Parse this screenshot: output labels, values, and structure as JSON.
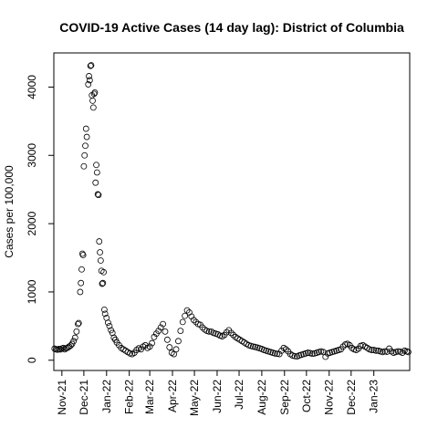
{
  "chart_data": {
    "type": "scatter",
    "title": "COVID-19 Active Cases (14 day lag): District of Columbia",
    "xlabel": "",
    "ylabel": "Cases per 100,000",
    "xlim": [
      "2021-10-21",
      "2023-02-19"
    ],
    "ylim": [
      -150,
      4500
    ],
    "yticks": [
      0,
      1000,
      2000,
      3000,
      4000
    ],
    "xticks": [
      {
        "date": "2021-11-01",
        "label": "Nov-21"
      },
      {
        "date": "2021-12-01",
        "label": "Dec-21"
      },
      {
        "date": "2022-01-01",
        "label": "Jan-22"
      },
      {
        "date": "2022-02-01",
        "label": "Feb-22"
      },
      {
        "date": "2022-03-01",
        "label": "Mar-22"
      },
      {
        "date": "2022-04-01",
        "label": "Apr-22"
      },
      {
        "date": "2022-05-01",
        "label": "May-22"
      },
      {
        "date": "2022-06-01",
        "label": "Jun-22"
      },
      {
        "date": "2022-07-01",
        "label": "Jul-22"
      },
      {
        "date": "2022-08-01",
        "label": "Aug-22"
      },
      {
        "date": "2022-09-01",
        "label": "Sep-22"
      },
      {
        "date": "2022-10-01",
        "label": "Oct-22"
      },
      {
        "date": "2022-11-01",
        "label": "Nov-22"
      },
      {
        "date": "2022-12-01",
        "label": "Dec-22"
      },
      {
        "date": "2023-01-01",
        "label": "Jan-23"
      }
    ],
    "grid": false,
    "legend": "none",
    "marker": "open-circle",
    "series": [
      {
        "points": [
          [
            "2021-10-22",
            170
          ],
          [
            "2021-10-24",
            160
          ],
          [
            "2021-10-26",
            155
          ],
          [
            "2021-10-28",
            165
          ],
          [
            "2021-10-30",
            158
          ],
          [
            "2021-11-01",
            172
          ],
          [
            "2021-11-03",
            180
          ],
          [
            "2021-11-05",
            160
          ],
          [
            "2021-11-07",
            175
          ],
          [
            "2021-11-09",
            185
          ],
          [
            "2021-11-11",
            200
          ],
          [
            "2021-11-13",
            215
          ],
          [
            "2021-11-15",
            240
          ],
          [
            "2021-11-17",
            280
          ],
          [
            "2021-11-19",
            330
          ],
          [
            "2021-11-21",
            420
          ],
          [
            "2021-11-23",
            530
          ],
          [
            "2021-11-24",
            545
          ],
          [
            "2021-11-26",
            1000
          ],
          [
            "2021-11-27",
            1130
          ],
          [
            "2021-11-28",
            1330
          ],
          [
            "2021-11-29",
            1560
          ],
          [
            "2021-11-30",
            1540
          ],
          [
            "2021-12-01",
            2840
          ],
          [
            "2021-12-02",
            3000
          ],
          [
            "2021-12-03",
            3140
          ],
          [
            "2021-12-04",
            3390
          ],
          [
            "2021-12-05",
            3270
          ],
          [
            "2021-12-07",
            4040
          ],
          [
            "2021-12-08",
            4160
          ],
          [
            "2021-12-09",
            4100
          ],
          [
            "2021-12-10",
            4310
          ],
          [
            "2021-12-11",
            4320
          ],
          [
            "2021-12-12",
            3880
          ],
          [
            "2021-12-13",
            3800
          ],
          [
            "2021-12-14",
            3700
          ],
          [
            "2021-12-15",
            3900
          ],
          [
            "2021-12-16",
            3920
          ],
          [
            "2021-12-17",
            2600
          ],
          [
            "2021-12-18",
            2860
          ],
          [
            "2021-12-19",
            2750
          ],
          [
            "2021-12-20",
            2430
          ],
          [
            "2021-12-21",
            2420
          ],
          [
            "2021-12-22",
            1740
          ],
          [
            "2021-12-23",
            1580
          ],
          [
            "2021-12-24",
            1460
          ],
          [
            "2021-12-25",
            1310
          ],
          [
            "2021-12-26",
            1120
          ],
          [
            "2021-12-27",
            1130
          ],
          [
            "2021-12-28",
            1290
          ],
          [
            "2021-12-29",
            740
          ],
          [
            "2021-12-30",
            680
          ],
          [
            "2022-01-01",
            620
          ],
          [
            "2022-01-03",
            550
          ],
          [
            "2022-01-05",
            500
          ],
          [
            "2022-01-07",
            440
          ],
          [
            "2022-01-09",
            400
          ],
          [
            "2022-01-11",
            330
          ],
          [
            "2022-01-13",
            300
          ],
          [
            "2022-01-15",
            260
          ],
          [
            "2022-01-18",
            220
          ],
          [
            "2022-01-21",
            180
          ],
          [
            "2022-01-24",
            160
          ],
          [
            "2022-01-27",
            140
          ],
          [
            "2022-01-30",
            120
          ],
          [
            "2022-02-02",
            100
          ],
          [
            "2022-02-05",
            90
          ],
          [
            "2022-02-08",
            110
          ],
          [
            "2022-02-11",
            150
          ],
          [
            "2022-02-14",
            175
          ],
          [
            "2022-02-17",
            160
          ],
          [
            "2022-02-20",
            200
          ],
          [
            "2022-02-23",
            220
          ],
          [
            "2022-02-26",
            180
          ],
          [
            "2022-03-01",
            200
          ],
          [
            "2022-03-04",
            250
          ],
          [
            "2022-03-07",
            340
          ],
          [
            "2022-03-10",
            390
          ],
          [
            "2022-03-13",
            430
          ],
          [
            "2022-03-16",
            480
          ],
          [
            "2022-03-19",
            530
          ],
          [
            "2022-03-22",
            420
          ],
          [
            "2022-03-25",
            300
          ],
          [
            "2022-03-28",
            190
          ],
          [
            "2022-03-31",
            110
          ],
          [
            "2022-04-03",
            90
          ],
          [
            "2022-04-06",
            160
          ],
          [
            "2022-04-09",
            280
          ],
          [
            "2022-04-12",
            430
          ],
          [
            "2022-04-15",
            560
          ],
          [
            "2022-04-18",
            650
          ],
          [
            "2022-04-21",
            730
          ],
          [
            "2022-04-24",
            700
          ],
          [
            "2022-04-27",
            640
          ],
          [
            "2022-04-30",
            590
          ],
          [
            "2022-05-03",
            560
          ],
          [
            "2022-05-06",
            530
          ],
          [
            "2022-05-09",
            520
          ],
          [
            "2022-05-12",
            480
          ],
          [
            "2022-05-15",
            450
          ],
          [
            "2022-05-18",
            430
          ],
          [
            "2022-05-21",
            420
          ],
          [
            "2022-05-24",
            420
          ],
          [
            "2022-05-27",
            400
          ],
          [
            "2022-05-30",
            390
          ],
          [
            "2022-06-02",
            380
          ],
          [
            "2022-06-05",
            360
          ],
          [
            "2022-06-08",
            350
          ],
          [
            "2022-06-11",
            370
          ],
          [
            "2022-06-14",
            410
          ],
          [
            "2022-06-17",
            440
          ],
          [
            "2022-06-20",
            400
          ],
          [
            "2022-06-23",
            370
          ],
          [
            "2022-06-26",
            340
          ],
          [
            "2022-06-29",
            320
          ],
          [
            "2022-07-02",
            300
          ],
          [
            "2022-07-05",
            280
          ],
          [
            "2022-07-08",
            260
          ],
          [
            "2022-07-11",
            240
          ],
          [
            "2022-07-14",
            220
          ],
          [
            "2022-07-17",
            210
          ],
          [
            "2022-07-20",
            200
          ],
          [
            "2022-07-23",
            195
          ],
          [
            "2022-07-26",
            185
          ],
          [
            "2022-07-29",
            175
          ],
          [
            "2022-08-01",
            165
          ],
          [
            "2022-08-04",
            150
          ],
          [
            "2022-08-07",
            140
          ],
          [
            "2022-08-10",
            130
          ],
          [
            "2022-08-13",
            120
          ],
          [
            "2022-08-16",
            110
          ],
          [
            "2022-08-19",
            100
          ],
          [
            "2022-08-22",
            95
          ],
          [
            "2022-08-25",
            90
          ],
          [
            "2022-08-28",
            140
          ],
          [
            "2022-08-31",
            180
          ],
          [
            "2022-09-03",
            160
          ],
          [
            "2022-09-06",
            130
          ],
          [
            "2022-09-09",
            90
          ],
          [
            "2022-09-12",
            70
          ],
          [
            "2022-09-15",
            60
          ],
          [
            "2022-09-18",
            55
          ],
          [
            "2022-09-21",
            70
          ],
          [
            "2022-09-24",
            80
          ],
          [
            "2022-09-27",
            90
          ],
          [
            "2022-09-30",
            100
          ],
          [
            "2022-10-03",
            110
          ],
          [
            "2022-10-06",
            105
          ],
          [
            "2022-10-09",
            95
          ],
          [
            "2022-10-12",
            100
          ],
          [
            "2022-10-15",
            110
          ],
          [
            "2022-10-18",
            120
          ],
          [
            "2022-10-21",
            130
          ],
          [
            "2022-10-24",
            120
          ],
          [
            "2022-10-27",
            50
          ],
          [
            "2022-10-30",
            100
          ],
          [
            "2022-11-02",
            110
          ],
          [
            "2022-11-05",
            120
          ],
          [
            "2022-11-08",
            130
          ],
          [
            "2022-11-11",
            140
          ],
          [
            "2022-11-14",
            150
          ],
          [
            "2022-11-17",
            160
          ],
          [
            "2022-11-20",
            200
          ],
          [
            "2022-11-23",
            230
          ],
          [
            "2022-11-26",
            240
          ],
          [
            "2022-11-29",
            220
          ],
          [
            "2022-12-02",
            180
          ],
          [
            "2022-12-05",
            160
          ],
          [
            "2022-12-08",
            150
          ],
          [
            "2022-12-11",
            170
          ],
          [
            "2022-12-14",
            210
          ],
          [
            "2022-12-17",
            220
          ],
          [
            "2022-12-20",
            200
          ],
          [
            "2022-12-23",
            180
          ],
          [
            "2022-12-26",
            160
          ],
          [
            "2022-12-29",
            150
          ],
          [
            "2023-01-01",
            150
          ],
          [
            "2023-01-04",
            140
          ],
          [
            "2023-01-07",
            140
          ],
          [
            "2023-01-10",
            130
          ],
          [
            "2023-01-13",
            120
          ],
          [
            "2023-01-16",
            130
          ],
          [
            "2023-01-19",
            125
          ],
          [
            "2023-01-22",
            170
          ],
          [
            "2023-01-25",
            130
          ],
          [
            "2023-01-28",
            110
          ],
          [
            "2023-01-31",
            120
          ],
          [
            "2023-02-03",
            130
          ],
          [
            "2023-02-06",
            125
          ],
          [
            "2023-02-09",
            110
          ],
          [
            "2023-02-12",
            140
          ],
          [
            "2023-02-15",
            130
          ],
          [
            "2023-02-17",
            120
          ]
        ]
      }
    ]
  }
}
